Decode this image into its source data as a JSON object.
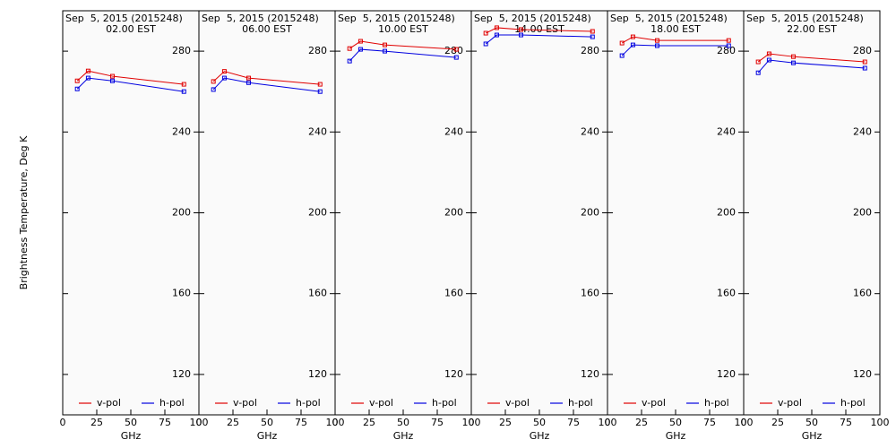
{
  "chart_data": [
    {
      "type": "line",
      "title": "Sep  5, 2015 (2015248)",
      "subtitle": "02.00 EST",
      "xlabel": "GHz",
      "ylabel": "Brightness Temperature, Deg K",
      "x": [
        10.65,
        18.7,
        36.5,
        89
      ],
      "xlim": [
        0,
        100
      ],
      "xticks": [
        0,
        25,
        50,
        75,
        100
      ],
      "ylim": [
        100,
        300
      ],
      "yticks": [
        120,
        160,
        200,
        240,
        280
      ],
      "grid": false,
      "series": [
        {
          "name": "v-pol",
          "color": "#e00000",
          "values": [
            265.3,
            270.2,
            267.6,
            263.6
          ]
        },
        {
          "name": "h-pol",
          "color": "#0000e0",
          "values": [
            261.3,
            266.7,
            265.3,
            260.0
          ]
        }
      ]
    },
    {
      "type": "line",
      "title": "Sep  5, 2015 (2015248)",
      "subtitle": "06.00 EST",
      "xlabel": "GHz",
      "x": [
        10.65,
        18.7,
        36.5,
        89
      ],
      "xlim": [
        0,
        100
      ],
      "xticks": [
        0,
        25,
        50,
        75,
        100
      ],
      "ylim": [
        100,
        300
      ],
      "yticks": [
        120,
        160,
        200,
        240,
        280
      ],
      "grid": false,
      "series": [
        {
          "name": "v-pol",
          "color": "#e00000",
          "values": [
            265.0,
            270.0,
            266.7,
            263.6
          ]
        },
        {
          "name": "h-pol",
          "color": "#0000e0",
          "values": [
            261.0,
            266.7,
            264.4,
            260.0
          ]
        }
      ]
    },
    {
      "type": "line",
      "title": "Sep  5, 2015 (2015248)",
      "subtitle": "10.00 EST",
      "xlabel": "GHz",
      "x": [
        10.65,
        18.7,
        36.5,
        89
      ],
      "xlim": [
        0,
        100
      ],
      "xticks": [
        0,
        25,
        50,
        75,
        100
      ],
      "ylim": [
        100,
        300
      ],
      "yticks": [
        120,
        160,
        200,
        240,
        280
      ],
      "grid": false,
      "series": [
        {
          "name": "v-pol",
          "color": "#e00000",
          "values": [
            281.3,
            284.9,
            283.1,
            280.9
          ]
        },
        {
          "name": "h-pol",
          "color": "#0000e0",
          "values": [
            275.1,
            280.9,
            280.0,
            276.9
          ]
        }
      ]
    },
    {
      "type": "line",
      "title": "Sep  5, 2015 (2015248)",
      "subtitle": "14.00 EST",
      "xlabel": "GHz",
      "x": [
        10.65,
        18.7,
        36.5,
        89
      ],
      "xlim": [
        0,
        100
      ],
      "xticks": [
        0,
        25,
        50,
        75,
        100
      ],
      "ylim": [
        100,
        300
      ],
      "yticks": [
        120,
        160,
        200,
        240,
        280
      ],
      "grid": false,
      "series": [
        {
          "name": "v-pol",
          "color": "#e00000",
          "values": [
            288.9,
            291.6,
            290.7,
            289.8
          ]
        },
        {
          "name": "h-pol",
          "color": "#0000e0",
          "values": [
            283.6,
            288.0,
            288.0,
            287.1
          ]
        }
      ]
    },
    {
      "type": "line",
      "title": "Sep  5, 2015 (2015248)",
      "subtitle": "18.00 EST",
      "xlabel": "GHz",
      "x": [
        10.65,
        18.7,
        36.5,
        89
      ],
      "xlim": [
        0,
        100
      ],
      "xticks": [
        0,
        25,
        50,
        75,
        100
      ],
      "ylim": [
        100,
        300
      ],
      "yticks": [
        120,
        160,
        200,
        240,
        280
      ],
      "grid": false,
      "series": [
        {
          "name": "v-pol",
          "color": "#e00000",
          "values": [
            284.0,
            287.1,
            285.3,
            285.3
          ]
        },
        {
          "name": "h-pol",
          "color": "#0000e0",
          "values": [
            277.8,
            283.1,
            282.7,
            282.7
          ]
        }
      ]
    },
    {
      "type": "line",
      "title": "Sep  5, 2015 (2015248)",
      "subtitle": "22.00 EST",
      "xlabel": "GHz",
      "x": [
        10.65,
        18.7,
        36.5,
        89
      ],
      "xlim": [
        0,
        100
      ],
      "xticks": [
        0,
        25,
        50,
        75,
        100
      ],
      "ylim": [
        100,
        300
      ],
      "yticks": [
        120,
        160,
        200,
        240,
        280
      ],
      "grid": false,
      "series": [
        {
          "name": "v-pol",
          "color": "#e00000",
          "values": [
            274.7,
            278.7,
            277.3,
            274.7
          ]
        },
        {
          "name": "h-pol",
          "color": "#0000e0",
          "values": [
            269.3,
            275.6,
            274.2,
            271.6
          ]
        }
      ]
    }
  ]
}
